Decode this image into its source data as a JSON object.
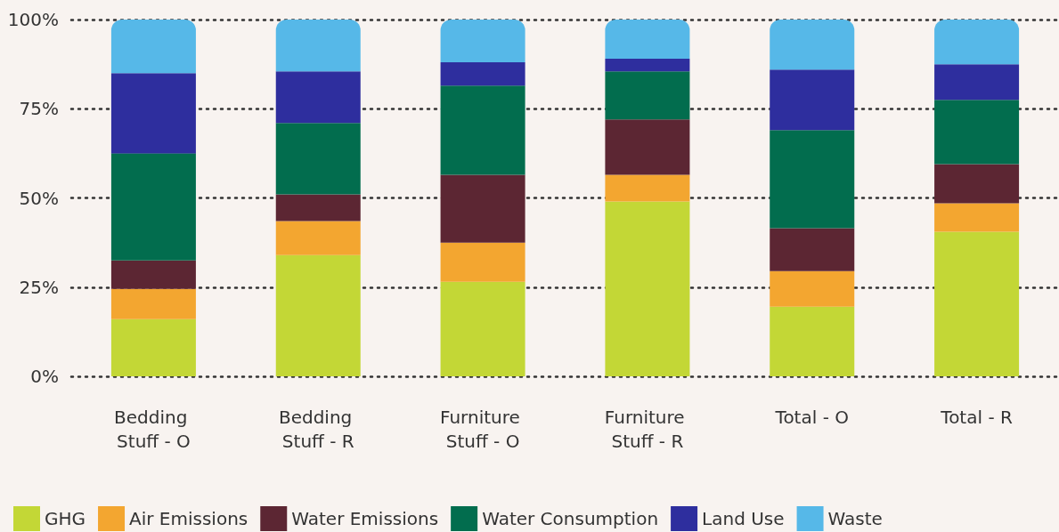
{
  "chart_data": {
    "type": "bar",
    "stacked": true,
    "categories": [
      "Bedding Stuff - O",
      "Bedding Stuff - R",
      "Furniture Stuff - O",
      "Furniture Stuff - R",
      "Total - O",
      "Total - R"
    ],
    "series": [
      {
        "name": "GHG",
        "color": "#c3d736",
        "values": [
          16,
          34,
          26.5,
          49,
          19.5,
          40.5
        ]
      },
      {
        "name": "Air Emissions",
        "color": "#f3a630",
        "values": [
          8.5,
          9.5,
          11,
          7.5,
          10,
          8
        ]
      },
      {
        "name": "Water Emissions",
        "color": "#5c2633",
        "values": [
          8,
          7.5,
          19,
          15.5,
          12,
          11
        ]
      },
      {
        "name": "Water Consumption",
        "color": "#026d4e",
        "values": [
          30,
          20,
          25,
          13.5,
          27.5,
          18
        ]
      },
      {
        "name": "Land Use",
        "color": "#2e2e9e",
        "values": [
          22.5,
          14.5,
          6.5,
          3.5,
          17,
          10
        ]
      },
      {
        "name": "Waste",
        "color": "#56b8e8",
        "values": [
          15,
          14.5,
          12,
          11,
          14,
          12.5
        ]
      }
    ],
    "ylim": [
      0,
      100
    ],
    "yticks": [
      {
        "value": 0,
        "label": "0%"
      },
      {
        "value": 25,
        "label": "25%"
      },
      {
        "value": 50,
        "label": "50%"
      },
      {
        "value": 75,
        "label": "75%"
      },
      {
        "value": 100,
        "label": "100%"
      }
    ],
    "grid": "y",
    "legend": "bottom left"
  }
}
